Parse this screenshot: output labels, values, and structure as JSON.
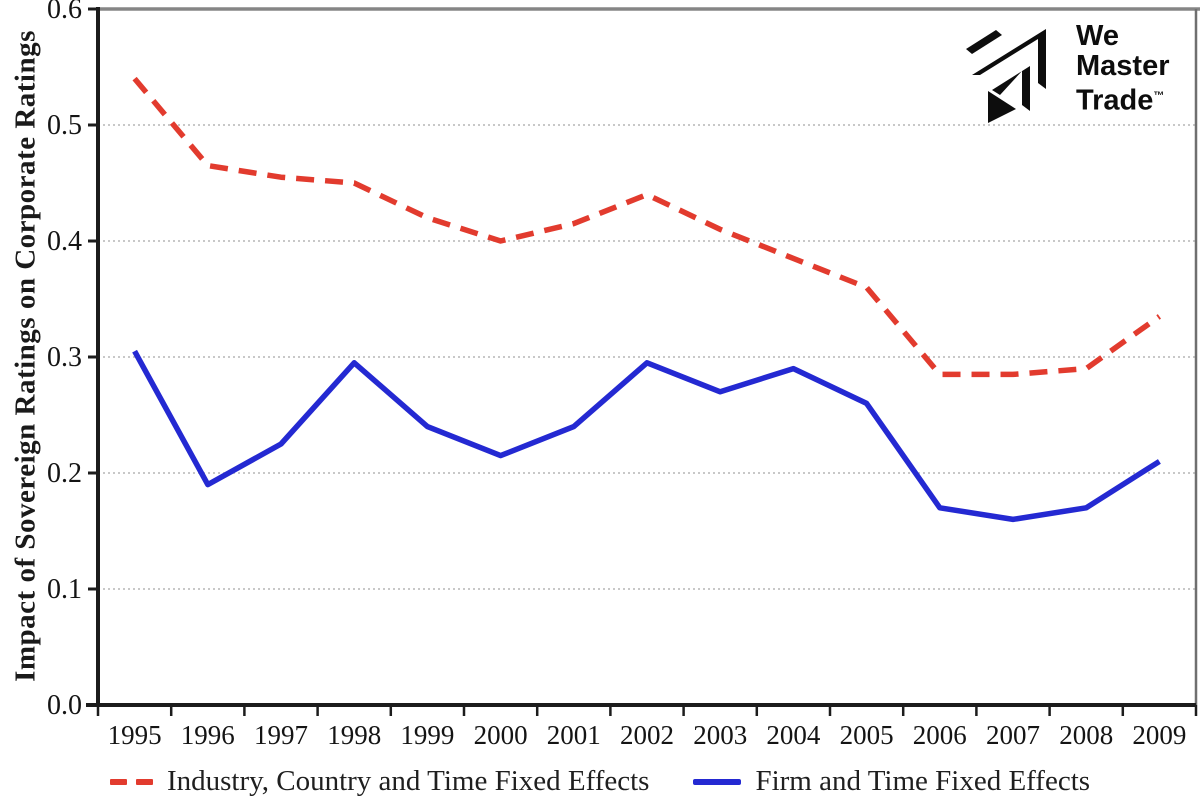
{
  "logo": {
    "line1": "We",
    "line2": "Master",
    "line3": "Trade",
    "tm": "™",
    "color": "#0d0d0d"
  },
  "chart_data": {
    "type": "line",
    "title": "",
    "xlabel": "",
    "ylabel": "Impact of Sovereign Ratings on Corporate Ratings",
    "categories": [
      "1995",
      "1996",
      "1997",
      "1998",
      "1999",
      "2000",
      "2001",
      "2002",
      "2003",
      "2004",
      "2005",
      "2006",
      "2007",
      "2008",
      "2009"
    ],
    "ylim": [
      0.0,
      0.6
    ],
    "yticks": [
      0.0,
      0.1,
      0.2,
      0.3,
      0.4,
      0.5,
      0.6
    ],
    "ytick_labels": [
      "0.0",
      "0.1",
      "0.2",
      "0.3",
      "0.4",
      "0.5",
      "0.6"
    ],
    "grid": "horizontal-dotted",
    "legend_position": "bottom",
    "series": [
      {
        "name": "Industry, Country and Time Fixed Effects",
        "style": "dashed",
        "color": "#e23b2e",
        "values": [
          0.54,
          0.465,
          0.455,
          0.45,
          0.42,
          0.4,
          0.415,
          0.44,
          0.41,
          0.385,
          0.36,
          0.285,
          0.285,
          0.29,
          0.335
        ]
      },
      {
        "name": "Firm and Time Fixed Effects",
        "style": "solid",
        "color": "#2429d2",
        "values": [
          0.305,
          0.19,
          0.225,
          0.295,
          0.24,
          0.215,
          0.24,
          0.295,
          0.27,
          0.29,
          0.26,
          0.17,
          0.16,
          0.17,
          0.21
        ]
      }
    ]
  },
  "chart_colors": {
    "gridline": "#b5b5b5",
    "top_border": "#858585",
    "right_border": "#6f6f6f",
    "axis": "#1c1c1c",
    "tick_text": "#141414"
  }
}
